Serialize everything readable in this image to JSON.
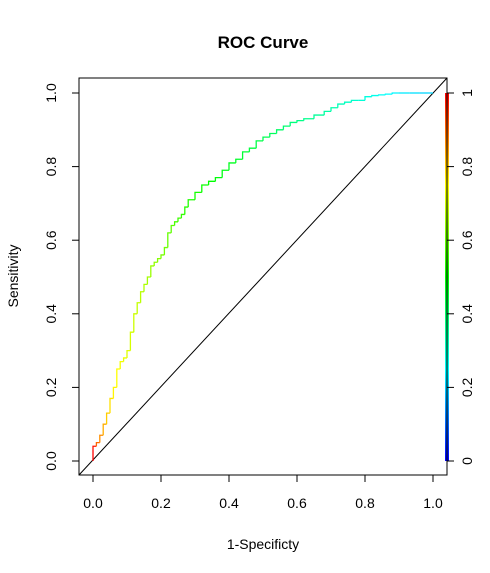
{
  "chart_data": {
    "type": "line",
    "title": "ROC Curve",
    "xlabel": "1-Specificty",
    "ylabel": "Sensitivity",
    "xlim": [
      -0.04,
      1.04
    ],
    "ylim": [
      -0.04,
      1.04
    ],
    "x_ticks": [
      "0.0",
      "0.2",
      "0.4",
      "0.6",
      "0.8",
      "1.0"
    ],
    "y_ticks": [
      "0.0",
      "0.2",
      "0.4",
      "0.6",
      "0.8",
      "1.0"
    ],
    "colorbar_ticks": [
      "0",
      "0.2",
      "0.4",
      "0.6",
      "0.8",
      "1"
    ],
    "grid": false,
    "reference_line": {
      "from": [
        0,
        0
      ],
      "to": [
        1,
        1
      ],
      "color": "#000000"
    },
    "colorbar": {
      "min": 0,
      "max": 1,
      "colors": [
        "#0000ff",
        "#00ffff",
        "#00ff00",
        "#ffff00",
        "#ff0000"
      ]
    },
    "series": [
      {
        "x": [
          0.0,
          0.0,
          0.01,
          0.02,
          0.03,
          0.04,
          0.05,
          0.06,
          0.07,
          0.08,
          0.09,
          0.1,
          0.11,
          0.12,
          0.13,
          0.14,
          0.15,
          0.16,
          0.17,
          0.18,
          0.19,
          0.2,
          0.21,
          0.22,
          0.23,
          0.24,
          0.25,
          0.26,
          0.27,
          0.28,
          0.3,
          0.32,
          0.34,
          0.36,
          0.38,
          0.4,
          0.42,
          0.44,
          0.46,
          0.48,
          0.5,
          0.52,
          0.54,
          0.56,
          0.58,
          0.6,
          0.62,
          0.65,
          0.68,
          0.7,
          0.72,
          0.74,
          0.76,
          0.78,
          0.8,
          0.82,
          0.84,
          0.86,
          0.88,
          0.9,
          0.93,
          0.96,
          1.0
        ],
        "y": [
          0.0,
          0.03,
          0.04,
          0.05,
          0.07,
          0.1,
          0.13,
          0.17,
          0.2,
          0.25,
          0.27,
          0.28,
          0.3,
          0.35,
          0.4,
          0.43,
          0.46,
          0.48,
          0.5,
          0.53,
          0.54,
          0.55,
          0.56,
          0.58,
          0.62,
          0.64,
          0.65,
          0.66,
          0.67,
          0.69,
          0.71,
          0.73,
          0.75,
          0.76,
          0.77,
          0.79,
          0.81,
          0.82,
          0.84,
          0.85,
          0.87,
          0.88,
          0.89,
          0.9,
          0.91,
          0.92,
          0.925,
          0.93,
          0.94,
          0.95,
          0.96,
          0.97,
          0.975,
          0.98,
          0.98,
          0.99,
          0.993,
          0.995,
          0.997,
          1.0,
          1.0,
          1.0,
          1.0
        ],
        "threshold": [
          1.0,
          0.98,
          0.9,
          0.86,
          0.83,
          0.8,
          0.78,
          0.76,
          0.75,
          0.74,
          0.73,
          0.72,
          0.71,
          0.7,
          0.69,
          0.68,
          0.67,
          0.66,
          0.65,
          0.64,
          0.63,
          0.62,
          0.61,
          0.6,
          0.59,
          0.57,
          0.56,
          0.55,
          0.54,
          0.53,
          0.52,
          0.51,
          0.5,
          0.49,
          0.48,
          0.47,
          0.46,
          0.45,
          0.44,
          0.43,
          0.42,
          0.41,
          0.4,
          0.39,
          0.38,
          0.37,
          0.36,
          0.35,
          0.34,
          0.33,
          0.32,
          0.31,
          0.3,
          0.29,
          0.28,
          0.27,
          0.26,
          0.25,
          0.24,
          0.23,
          0.22,
          0.21,
          0.2
        ]
      }
    ]
  }
}
